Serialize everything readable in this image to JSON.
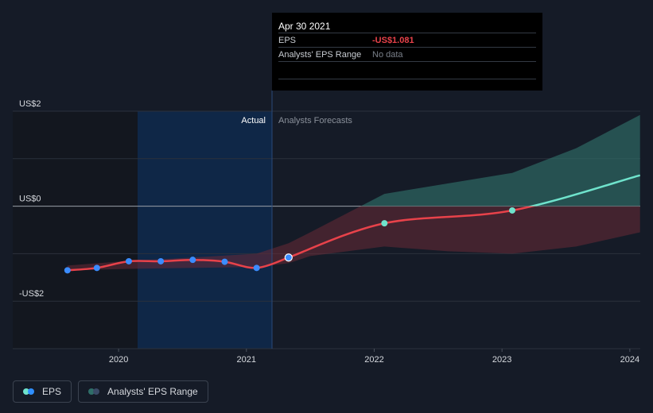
{
  "chart_data": {
    "type": "line",
    "y_ticks": [
      {
        "value": 2,
        "label": "US$2"
      },
      {
        "value": 0,
        "label": "US$0"
      },
      {
        "value": -2,
        "label": "-US$2"
      }
    ],
    "x_ticks": [
      {
        "value": 2020,
        "label": "2020"
      },
      {
        "value": 2021,
        "label": "2021"
      },
      {
        "value": 2022,
        "label": "2022"
      },
      {
        "value": 2023,
        "label": "2023"
      },
      {
        "value": 2024,
        "label": "2024"
      }
    ],
    "xlim": [
      2019.4,
      2024.08
    ],
    "ylim": [
      -3.0,
      2.0
    ],
    "region_labels": {
      "actual": "Actual",
      "forecast": "Analysts Forecasts"
    },
    "actual_end": 2021.33,
    "series": [
      {
        "name": "EPS",
        "color": "#e8424a",
        "points": [
          {
            "x": 2019.6,
            "y": -1.35
          },
          {
            "x": 2019.83,
            "y": -1.3
          },
          {
            "x": 2020.08,
            "y": -1.16
          },
          {
            "x": 2020.33,
            "y": -1.16
          },
          {
            "x": 2020.58,
            "y": -1.13
          },
          {
            "x": 2020.83,
            "y": -1.17
          },
          {
            "x": 2021.08,
            "y": -1.3
          },
          {
            "x": 2021.33,
            "y": -1.081
          }
        ]
      },
      {
        "name": "EPS forecast",
        "color_negative": "#e8424a",
        "color_positive": "#6fe3cc",
        "points": [
          {
            "x": 2021.33,
            "y": -1.081
          },
          {
            "x": 2022.08,
            "y": -0.36
          },
          {
            "x": 2023.08,
            "y": -0.09
          },
          {
            "x": 2024.08,
            "y": 0.65
          }
        ]
      }
    ],
    "range_band": {
      "name": "Analysts' EPS Range",
      "x": [
        2019.6,
        2020.08,
        2020.58,
        2021.08,
        2021.33,
        2021.5,
        2022.08,
        2022.58,
        2023.08,
        2023.58,
        2024.08
      ],
      "low": [
        -1.35,
        -1.32,
        -1.3,
        -1.28,
        -1.2,
        -1.05,
        -0.85,
        -0.95,
        -1.0,
        -0.85,
        -0.55
      ],
      "high": [
        -1.25,
        -1.15,
        -1.08,
        -1.0,
        -0.78,
        -0.55,
        0.26,
        0.48,
        0.7,
        1.22,
        1.92
      ]
    }
  },
  "tooltip": {
    "date": "Apr 30 2021",
    "eps_label": "EPS",
    "eps_value": "-US$1.081",
    "range_label": "Analysts' EPS Range",
    "range_value": "No data"
  },
  "legend": {
    "eps": "EPS",
    "range": "Analysts' EPS Range"
  },
  "colors": {
    "background": "#151b27",
    "eps_line": "#e8424a",
    "forecast_positive": "#6fe3cc",
    "past_highlight": "#0f2747"
  }
}
